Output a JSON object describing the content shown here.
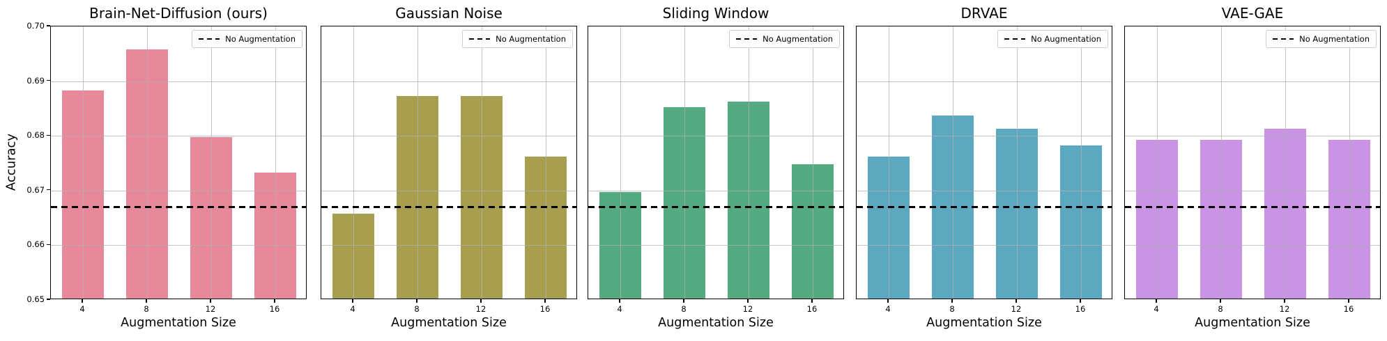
{
  "figure": {
    "ylabel": "Accuracy",
    "xlabel": "Augmentation Size",
    "legend_label": "No Augmentation",
    "baseline_value": 0.667,
    "ylim": [
      0.65,
      0.7
    ],
    "ytick_labels": [
      "0.65",
      "0.66",
      "0.67",
      "0.68",
      "0.69",
      "0.70"
    ],
    "categories": [
      "4",
      "8",
      "12",
      "16"
    ],
    "grid": true,
    "legend_position": "upper right",
    "spine_color": "#000000",
    "grid_color": "#b0b0b0"
  },
  "chart_data": [
    {
      "type": "bar",
      "title": "Brain-Net-Diffusion (ours)",
      "xlabel": "Augmentation Size",
      "ylabel": "Accuracy",
      "categories": [
        "4",
        "8",
        "12",
        "16"
      ],
      "values": [
        0.688,
        0.6955,
        0.6795,
        0.673
      ],
      "color": "#e8889b",
      "ylim": [
        0.65,
        0.7
      ],
      "baseline": {
        "label": "No Augmentation",
        "value": 0.667
      },
      "legend_position": "upper right",
      "grid": true
    },
    {
      "type": "bar",
      "title": "Gaussian Noise",
      "xlabel": "Augmentation Size",
      "ylabel": "",
      "categories": [
        "4",
        "8",
        "12",
        "16"
      ],
      "values": [
        0.6655,
        0.687,
        0.687,
        0.676
      ],
      "color": "#a89e50",
      "ylim": [
        0.65,
        0.7
      ],
      "baseline": {
        "label": "No Augmentation",
        "value": 0.667
      },
      "legend_position": "upper right",
      "grid": true
    },
    {
      "type": "bar",
      "title": "Sliding Window",
      "xlabel": "Augmentation Size",
      "ylabel": "",
      "categories": [
        "4",
        "8",
        "12",
        "16"
      ],
      "values": [
        0.6695,
        0.685,
        0.686,
        0.6745
      ],
      "color": "#56aa82",
      "ylim": [
        0.65,
        0.7
      ],
      "baseline": {
        "label": "No Augmentation",
        "value": 0.667
      },
      "legend_position": "upper right",
      "grid": true
    },
    {
      "type": "bar",
      "title": "DRVAE",
      "xlabel": "Augmentation Size",
      "ylabel": "",
      "categories": [
        "4",
        "8",
        "12",
        "16"
      ],
      "values": [
        0.676,
        0.6835,
        0.681,
        0.678
      ],
      "color": "#5ba8bf",
      "ylim": [
        0.65,
        0.7
      ],
      "baseline": {
        "label": "No Augmentation",
        "value": 0.667
      },
      "legend_position": "upper right",
      "grid": true
    },
    {
      "type": "bar",
      "title": "VAE-GAE",
      "xlabel": "Augmentation Size",
      "ylabel": "",
      "categories": [
        "4",
        "8",
        "12",
        "16"
      ],
      "values": [
        0.679,
        0.679,
        0.681,
        0.679
      ],
      "color": "#c994e4",
      "ylim": [
        0.65,
        0.7
      ],
      "baseline": {
        "label": "No Augmentation",
        "value": 0.667
      },
      "legend_position": "upper right",
      "grid": true
    }
  ]
}
